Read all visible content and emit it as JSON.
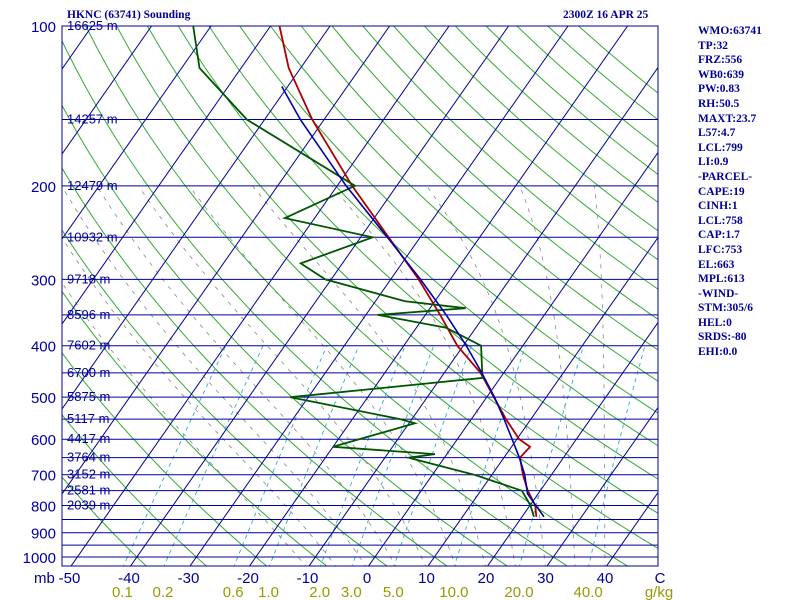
{
  "header": {
    "station": "HKNC (63741) Sounding",
    "time": "2300Z 16 APR 25"
  },
  "side_panel": [
    "WMO:63741",
    "TP:32",
    "FRZ:556",
    "WB0:639",
    "PW:0.83",
    "RH:50.5",
    "MAXT:23.7",
    "L57:4.7",
    "LCL:799",
    "LI:0.9",
    "-PARCEL-",
    "CAPE:19",
    "CINH:1",
    "LCL:758",
    "CAP:1.7",
    "LFC:753",
    "EL:663",
    "MPL:613",
    "-WIND-",
    "STM:305/6",
    "HEL:0",
    "SRDS:-80",
    "EHI:0.0"
  ],
  "colors": {
    "background": "#ffffff",
    "isobar": "#000099",
    "isotherm": "#000099",
    "dry_adiabat": "#33aa33",
    "mixing_ratio": "#33aacc",
    "moist_adiabat": "#888888",
    "temperature": "#aa0000",
    "dewpoint": "#005500",
    "parcel": "#0000aa",
    "label": "#000099",
    "mixing_label": "#999900"
  },
  "chart_data": {
    "type": "line",
    "diagram": "skew-T log-P",
    "pressure_labels": [
      {
        "p": 100,
        "label": "100"
      },
      {
        "p": 200,
        "label": "200"
      },
      {
        "p": 300,
        "label": "300"
      },
      {
        "p": 400,
        "label": "400"
      },
      {
        "p": 500,
        "label": "500"
      },
      {
        "p": 600,
        "label": "600"
      },
      {
        "p": 700,
        "label": "700"
      },
      {
        "p": 800,
        "label": "800"
      },
      {
        "p": 900,
        "label": "900"
      },
      {
        "p": 1000,
        "label": "1000"
      }
    ],
    "height_labels": [
      {
        "p": 100,
        "label": "16625 m"
      },
      {
        "p": 150,
        "label": "14257 m"
      },
      {
        "p": 200,
        "label": "12479 m"
      },
      {
        "p": 250,
        "label": "10932 m"
      },
      {
        "p": 300,
        "label": "9718 m"
      },
      {
        "p": 350,
        "label": "8596 m"
      },
      {
        "p": 400,
        "label": "7602 m"
      },
      {
        "p": 450,
        "label": "6700 m"
      },
      {
        "p": 500,
        "label": "5875 m"
      },
      {
        "p": 550,
        "label": "5117 m"
      },
      {
        "p": 600,
        "label": "4417 m"
      },
      {
        "p": 650,
        "label": "3764 m"
      },
      {
        "p": 700,
        "label": "3152 m"
      },
      {
        "p": 750,
        "label": "2581 m"
      },
      {
        "p": 800,
        "label": "2039 m"
      }
    ],
    "x_axis_unit_left": "mb",
    "x_axis_unit_right": "C",
    "temperature_ticks": [
      "-50",
      "-40",
      "-30",
      "-20",
      "-10",
      "0",
      "10",
      "20",
      "30",
      "40"
    ],
    "mixing_ratio_unit": "g/kg",
    "mixing_ratio_labels": [
      "0.1",
      "0.2",
      "0.6",
      "1.0",
      "2.0",
      "3.0",
      "5.0",
      "10.0",
      "20.0",
      "40.0"
    ],
    "series": [
      {
        "key": "temperature",
        "points": [
          [
            840,
            22.4
          ],
          [
            800,
            20.9
          ],
          [
            750,
            17.9
          ],
          [
            700,
            15.2
          ],
          [
            650,
            12.7
          ],
          [
            620,
            13.1
          ],
          [
            600,
            10.4
          ],
          [
            550,
            5.8
          ],
          [
            500,
            1.2
          ],
          [
            450,
            -3.9
          ],
          [
            400,
            -11.0
          ],
          [
            350,
            -17.5
          ],
          [
            300,
            -25.3
          ],
          [
            250,
            -35.3
          ],
          [
            200,
            -47.5
          ],
          [
            150,
            -62.0
          ],
          [
            120,
            -72.0
          ],
          [
            100,
            -78.5
          ]
        ]
      },
      {
        "key": "dewpoint",
        "points": [
          [
            840,
            22.0
          ],
          [
            800,
            20.1
          ],
          [
            750,
            16.9
          ],
          [
            700,
            7.0
          ],
          [
            650,
            -6.0
          ],
          [
            640,
            -2.0
          ],
          [
            620,
            -20.0
          ],
          [
            560,
            -9.0
          ],
          [
            550,
            -12.0
          ],
          [
            500,
            -33.0
          ],
          [
            460,
            -3.0
          ],
          [
            400,
            -7.0
          ],
          [
            370,
            -15.0
          ],
          [
            350,
            -28.0
          ],
          [
            340,
            -14.0
          ],
          [
            330,
            -25.0
          ],
          [
            300,
            -41.0
          ],
          [
            280,
            -47.0
          ],
          [
            250,
            -38.0
          ],
          [
            230,
            -55.0
          ],
          [
            200,
            -47.0
          ],
          [
            150,
            -73.0
          ],
          [
            120,
            -87.0
          ],
          [
            100,
            -93.0
          ]
        ]
      },
      {
        "key": "parcel",
        "points": [
          [
            840,
            23.7
          ],
          [
            800,
            21.0
          ],
          [
            760,
            18.2
          ],
          [
            700,
            15.5
          ],
          [
            650,
            12.6
          ],
          [
            600,
            9.2
          ],
          [
            550,
            5.5
          ],
          [
            500,
            1.3
          ],
          [
            450,
            -3.7
          ],
          [
            400,
            -9.5
          ],
          [
            350,
            -16.5
          ],
          [
            300,
            -25.0
          ],
          [
            250,
            -35.5
          ],
          [
            200,
            -48.5
          ],
          [
            150,
            -64.0
          ],
          [
            130,
            -71.0
          ]
        ]
      }
    ]
  }
}
